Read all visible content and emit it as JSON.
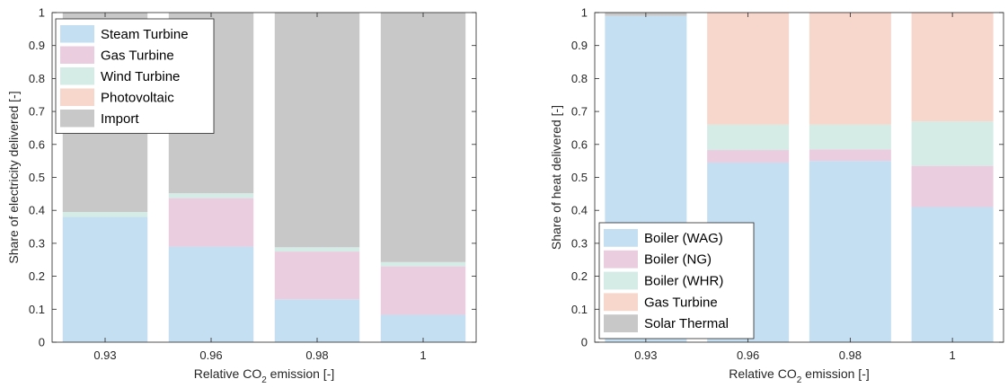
{
  "chart_data": [
    {
      "type": "bar",
      "stacked": true,
      "categories": [
        "0.93",
        "0.96",
        "0.98",
        "1"
      ],
      "xlabel_main": "Relative CO",
      "xlabel_sub": "2",
      "xlabel_tail": " emission [-]",
      "ylabel": "Share of electricity delivered [-]",
      "ylim": [
        0,
        1
      ],
      "yticks": [
        "0",
        "0.1",
        "0.2",
        "0.3",
        "0.4",
        "0.5",
        "0.6",
        "0.7",
        "0.8",
        "0.9",
        "1"
      ],
      "legend_position": "top-left",
      "series": [
        {
          "name": "Steam Turbine",
          "color": "#c5dff2",
          "values": [
            0.38,
            0.29,
            0.13,
            0.083
          ]
        },
        {
          "name": "Gas Turbine",
          "color": "#ebcde0",
          "values": [
            0.0,
            0.147,
            0.145,
            0.147
          ]
        },
        {
          "name": "Wind Turbine",
          "color": "#d5ece6",
          "values": [
            0.015,
            0.015,
            0.013,
            0.013
          ]
        },
        {
          "name": "Photovoltaic",
          "color": "#f7d7cb",
          "values": [
            0.0,
            0.0,
            0.0,
            0.0
          ]
        },
        {
          "name": "Import",
          "color": "#c8c8c8",
          "values": [
            0.605,
            0.548,
            0.712,
            0.757
          ]
        }
      ]
    },
    {
      "type": "bar",
      "stacked": true,
      "categories": [
        "0.93",
        "0.96",
        "0.98",
        "1"
      ],
      "xlabel_main": "Relative CO",
      "xlabel_sub": "2",
      "xlabel_tail": " emission [-]",
      "ylabel": "Share of heat delivered [-]",
      "ylim": [
        0,
        1
      ],
      "yticks": [
        "0",
        "0.1",
        "0.2",
        "0.3",
        "0.4",
        "0.5",
        "0.6",
        "0.7",
        "0.8",
        "0.9",
        "1"
      ],
      "legend_position": "bottom-left",
      "series": [
        {
          "name": "Boiler (WAG)",
          "color": "#c5dff2",
          "values": [
            0.99,
            0.545,
            0.55,
            0.41
          ]
        },
        {
          "name": "Boiler (NG)",
          "color": "#ebcde0",
          "values": [
            0.0,
            0.038,
            0.035,
            0.125
          ]
        },
        {
          "name": "Boiler (WHR)",
          "color": "#d5ece6",
          "values": [
            0.0,
            0.077,
            0.075,
            0.135
          ]
        },
        {
          "name": "Gas Turbine",
          "color": "#f7d7cb",
          "values": [
            0.0,
            0.34,
            0.34,
            0.33
          ]
        },
        {
          "name": "Solar Thermal",
          "color": "#c8c8c8",
          "values": [
            0.01,
            0.0,
            0.0,
            0.0
          ]
        }
      ]
    }
  ]
}
